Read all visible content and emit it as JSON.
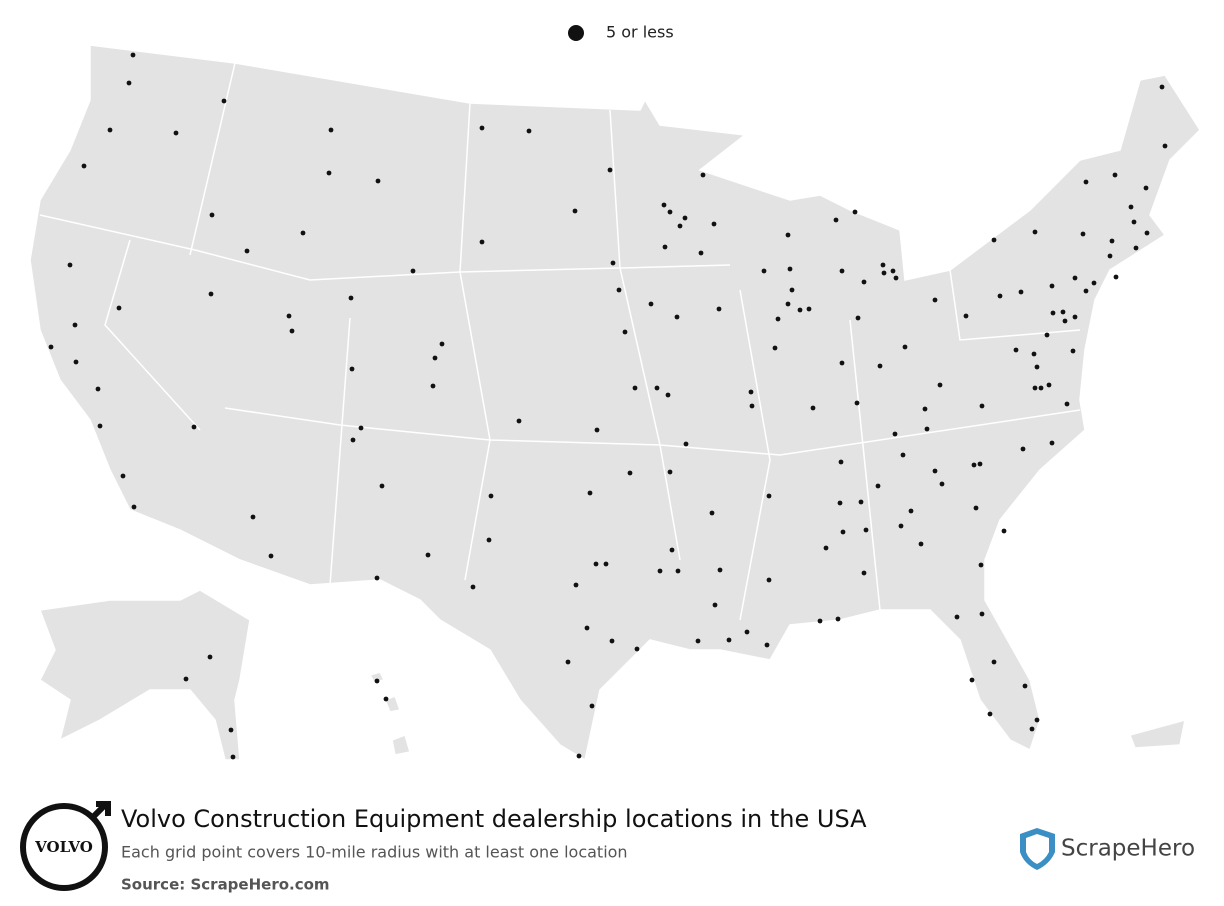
{
  "legend": {
    "label": "5 or less"
  },
  "footer": {
    "title": "Volvo Construction Equipment dealership locations in the USA",
    "subtitle": "Each grid point covers 10-mile radius with at least one location",
    "source": "Source: ScrapeHero.com",
    "brand_logo_text": "VOLVO",
    "publisher": "ScrapeHero"
  }
}
